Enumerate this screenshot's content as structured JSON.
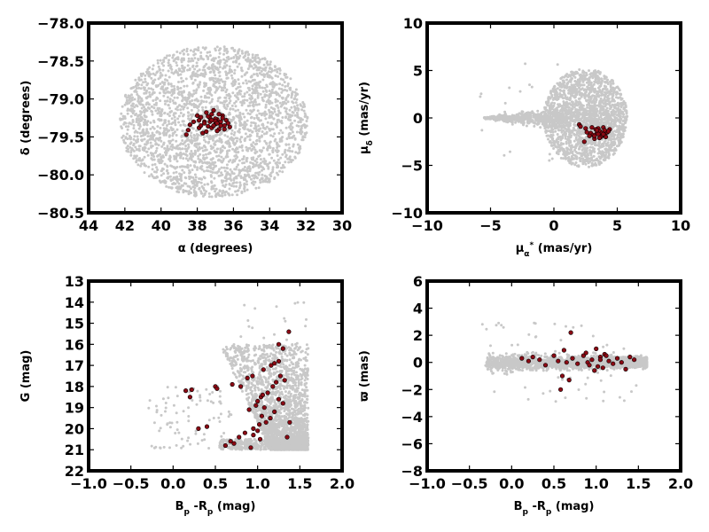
{
  "chart_data": [
    {
      "id": "sky",
      "type": "scatter",
      "xlabel_parts": [
        "α (degrees)"
      ],
      "ylabel_parts": [
        "δ (degrees)"
      ],
      "xlim": [
        44,
        30
      ],
      "ylim": [
        -80.5,
        -78.0
      ],
      "xticks": [
        44,
        42,
        40,
        38,
        36,
        34,
        32,
        30
      ],
      "xtick_labels": [
        "44",
        "42",
        "40",
        "38",
        "36",
        "34",
        "32",
        "30"
      ],
      "yticks": [
        -78.0,
        -78.5,
        -79.0,
        -79.5,
        -80.0,
        -80.5
      ],
      "ytick_labels": [
        "−78.0",
        "−78.5",
        "−79.0",
        "−79.5",
        "−80.0",
        "−80.5"
      ],
      "field_region": {
        "center": [
          37.1,
          -79.3
        ],
        "x_halfwidth": 5.2,
        "y_halfwidth": 1.0
      },
      "members": {
        "x": [
          37.8,
          37.6,
          37.2,
          36.9,
          36.6,
          38.2,
          37.4,
          37.0,
          36.7,
          37.9,
          37.3,
          36.8,
          37.5,
          36.5,
          38.0,
          37.1,
          36.4,
          37.7,
          36.9,
          38.5,
          37.2,
          36.6,
          37.6,
          36.3,
          37.0,
          37.4,
          38.6,
          36.8,
          37.8,
          37.3,
          36.5,
          37.1,
          36.2,
          37.9,
          38.4,
          36.7,
          37.5,
          37.0,
          36.9,
          37.2
        ],
        "y": [
          -79.24,
          -79.3,
          -79.2,
          -79.27,
          -79.22,
          -79.3,
          -79.36,
          -79.33,
          -79.3,
          -79.38,
          -79.25,
          -79.4,
          -79.18,
          -79.35,
          -79.22,
          -79.15,
          -79.28,
          -79.45,
          -79.42,
          -79.41,
          -79.38,
          -79.25,
          -79.32,
          -79.32,
          -79.26,
          -79.23,
          -79.47,
          -79.2,
          -79.35,
          -79.3,
          -79.4,
          -79.35,
          -79.37,
          -79.28,
          -79.34,
          -79.35,
          -79.43,
          -79.29,
          -79.32,
          -79.28
        ]
      }
    },
    {
      "id": "pm",
      "type": "scatter",
      "xlabel_parts": [
        "μ",
        "α",
        "*",
        "  (mas/yr)"
      ],
      "ylabel_parts": [
        "μ",
        "δ",
        "  (mas/yr)"
      ],
      "xlim": [
        -10,
        10
      ],
      "ylim": [
        -10,
        10
      ],
      "xticks": [
        -10,
        -5,
        0,
        5,
        10
      ],
      "xtick_labels": [
        "−10",
        "−5",
        "0",
        "5",
        "10"
      ],
      "yticks": [
        10,
        5,
        0,
        -5,
        -10
      ],
      "ytick_labels": [
        "10",
        "5",
        "0",
        "−5",
        "−10"
      ],
      "field_region": {
        "x_min": -5.5,
        "x_max": 5.8,
        "y_halfwidth": 5.8,
        "dense_x_min": 0.5
      },
      "members": {
        "x": [
          3.4,
          3.8,
          3.6,
          4.0,
          3.2,
          3.5,
          3.9,
          3.7,
          4.2,
          3.3,
          2.9,
          3.1,
          2.6,
          2.4,
          3.0,
          4.4,
          3.6,
          2.0,
          2.1,
          3.4,
          4.1,
          3.8,
          3.5,
          2.8,
          4.3,
          2.5,
          3.9,
          3.2,
          3.6,
          4.0
        ],
        "y": [
          -1.6,
          -1.9,
          -1.4,
          -1.8,
          -2.2,
          -1.1,
          -1.0,
          -2.0,
          -1.5,
          -1.2,
          -1.6,
          -1.8,
          -1.5,
          -2.5,
          -1.0,
          -1.2,
          -1.4,
          -0.7,
          -0.9,
          -1.3,
          -2.0,
          -1.6,
          -1.7,
          -1.9,
          -1.4,
          -1.1,
          -1.7,
          -1.9,
          -2.1,
          -1.3
        ]
      }
    },
    {
      "id": "cmd",
      "type": "scatter",
      "xlabel_parts": [
        "B",
        "p",
        " -R",
        "p",
        "  (mag)"
      ],
      "ylabel_parts": [
        "G (mag)"
      ],
      "xlim": [
        -1.0,
        2.0
      ],
      "ylim": [
        22,
        13
      ],
      "xticks": [
        -1.0,
        -0.5,
        0.0,
        0.5,
        1.0,
        1.5,
        2.0
      ],
      "xtick_labels": [
        "−1.0",
        "−0.5",
        "0.0",
        "0.5",
        "1.0",
        "1.5",
        "2.0"
      ],
      "yticks": [
        22,
        21,
        20,
        19,
        18,
        17,
        16,
        15,
        14,
        13
      ],
      "ytick_labels": [
        "22",
        "21",
        "20",
        "19",
        "18",
        "17",
        "16",
        "15",
        "14",
        "13"
      ],
      "field_region": {
        "faint_limit": 21.0,
        "x_max": 1.6
      },
      "members": {
        "x": [
          0.62,
          0.68,
          0.72,
          0.78,
          0.85,
          0.92,
          0.95,
          1.0,
          1.02,
          1.05,
          1.08,
          1.1,
          1.15,
          1.2,
          1.25,
          1.3,
          1.35,
          1.38,
          0.98,
          1.04,
          1.12,
          1.18,
          1.22,
          1.27,
          1.32,
          0.88,
          0.94,
          1.07,
          1.16,
          0.3,
          0.4,
          0.5,
          0.52,
          0.2,
          0.15,
          0.22,
          0.7,
          0.8,
          1.0,
          1.25,
          1.3,
          1.37,
          1.25,
          1.2,
          0.9,
          1.03,
          0.95,
          1.06
        ],
        "y": [
          20.8,
          20.6,
          20.7,
          20.4,
          20.2,
          20.9,
          20.3,
          20.1,
          19.8,
          19.4,
          19.0,
          19.7,
          19.5,
          19.2,
          18.6,
          18.8,
          20.4,
          19.7,
          18.9,
          18.5,
          18.3,
          18.0,
          17.8,
          17.5,
          17.7,
          17.6,
          17.5,
          17.2,
          17.0,
          20.0,
          19.9,
          18.0,
          18.1,
          18.5,
          18.2,
          18.15,
          17.9,
          18.0,
          18.7,
          16.8,
          16.2,
          15.4,
          16.0,
          16.9,
          19.1,
          20.5,
          20.0,
          18.4
        ]
      }
    },
    {
      "id": "plx",
      "type": "scatter",
      "xlabel_parts": [
        "B",
        "p",
        " -R",
        "p",
        "  (mag)"
      ],
      "ylabel_parts": [
        "ϖ (mas)"
      ],
      "xlim": [
        -1.0,
        2.0
      ],
      "ylim": [
        -8,
        6
      ],
      "xticks": [
        -1.0,
        -0.5,
        0.0,
        0.5,
        1.0,
        1.5,
        2.0
      ],
      "xtick_labels": [
        "−1.0",
        "−0.5",
        "0.0",
        "0.5",
        "1.0",
        "1.5",
        "2.0"
      ],
      "yticks": [
        6,
        4,
        2,
        0,
        -2,
        -4,
        -6,
        -8
      ],
      "ytick_labels": [
        "6",
        "4",
        "2",
        "0",
        "−2",
        "−4",
        "−6",
        "−8"
      ],
      "field_region": {
        "x_max": 1.6
      },
      "members": {
        "x": [
          0.12,
          0.2,
          0.25,
          0.33,
          0.4,
          0.5,
          0.55,
          0.58,
          0.62,
          0.7,
          0.72,
          0.78,
          0.85,
          0.9,
          0.95,
          1.0,
          1.02,
          1.05,
          1.08,
          1.1,
          1.15,
          1.2,
          1.25,
          1.3,
          1.35,
          1.4,
          1.45,
          0.98,
          1.12,
          0.88,
          0.65,
          0.92,
          1.05,
          0.6,
          0.68
        ],
        "y": [
          0.3,
          0.1,
          0.4,
          0.2,
          -0.2,
          0.5,
          0.1,
          -2.0,
          0.9,
          2.2,
          0.3,
          -0.1,
          0.5,
          0.0,
          0.2,
          1.0,
          -0.3,
          0.4,
          -0.4,
          0.6,
          0.1,
          -0.1,
          0.3,
          0.0,
          -0.5,
          0.4,
          0.2,
          -0.6,
          0.5,
          0.7,
          0.0,
          -0.2,
          0.2,
          -1.0,
          -1.3
        ]
      }
    }
  ]
}
